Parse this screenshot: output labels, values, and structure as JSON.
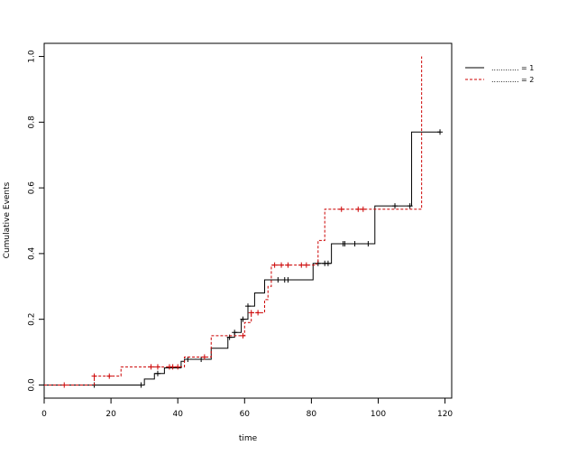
{
  "chart_data": {
    "type": "line",
    "subtype": "step",
    "xlabel": "time",
    "ylabel": "Cumulative Events",
    "xlim": [
      0,
      122
    ],
    "ylim": [
      -0.04,
      1.04
    ],
    "xticks": [
      0,
      20,
      40,
      60,
      80,
      100,
      120
    ],
    "yticks": [
      0.0,
      0.2,
      0.4,
      0.6,
      0.8,
      1.0
    ],
    "ytick_labels": [
      "0.0",
      "0.2",
      "0.4",
      "0.6",
      "0.8",
      "1.0"
    ],
    "legend": {
      "position": "top-right",
      "entries": [
        "............ = 1",
        "............ = 2"
      ]
    },
    "series": [
      {
        "line_style": "solid",
        "color": "#000000",
        "steps": [
          [
            0,
            0.0
          ],
          [
            29.5,
            0.0
          ],
          [
            30,
            0.018
          ],
          [
            33,
            0.035
          ],
          [
            36,
            0.052
          ],
          [
            41,
            0.072
          ],
          [
            42,
            0.078
          ],
          [
            50,
            0.112
          ],
          [
            55,
            0.145
          ],
          [
            57,
            0.16
          ],
          [
            59,
            0.2
          ],
          [
            61,
            0.24
          ],
          [
            63,
            0.28
          ],
          [
            66,
            0.32
          ],
          [
            80.5,
            0.37
          ],
          [
            86,
            0.43
          ],
          [
            99,
            0.545
          ],
          [
            110,
            0.77
          ],
          [
            118.5,
            0.77
          ]
        ],
        "censored": [
          15,
          29,
          34,
          43,
          47,
          55.5,
          57,
          59.5,
          61,
          70,
          72,
          73,
          82,
          84,
          85,
          89.5,
          90,
          93,
          97,
          105,
          109.5,
          118.5
        ]
      },
      {
        "line_style": "dashed",
        "color": "#cc0000",
        "steps": [
          [
            0,
            0.0
          ],
          [
            15,
            0.027
          ],
          [
            23,
            0.055
          ],
          [
            36,
            0.055
          ],
          [
            39,
            0.055
          ],
          [
            42,
            0.085
          ],
          [
            50,
            0.15
          ],
          [
            60,
            0.19
          ],
          [
            62,
            0.22
          ],
          [
            66,
            0.26
          ],
          [
            67,
            0.3
          ],
          [
            68,
            0.365
          ],
          [
            81.5,
            0.37
          ],
          [
            82,
            0.44
          ],
          [
            84,
            0.535
          ],
          [
            113,
            1.0
          ]
        ],
        "censored": [
          6,
          15,
          19.5,
          32,
          34,
          37.5,
          38.5,
          40,
          48,
          59.5,
          62,
          64,
          69,
          71,
          73,
          77,
          78.5,
          89,
          94,
          95.5
        ]
      }
    ]
  }
}
